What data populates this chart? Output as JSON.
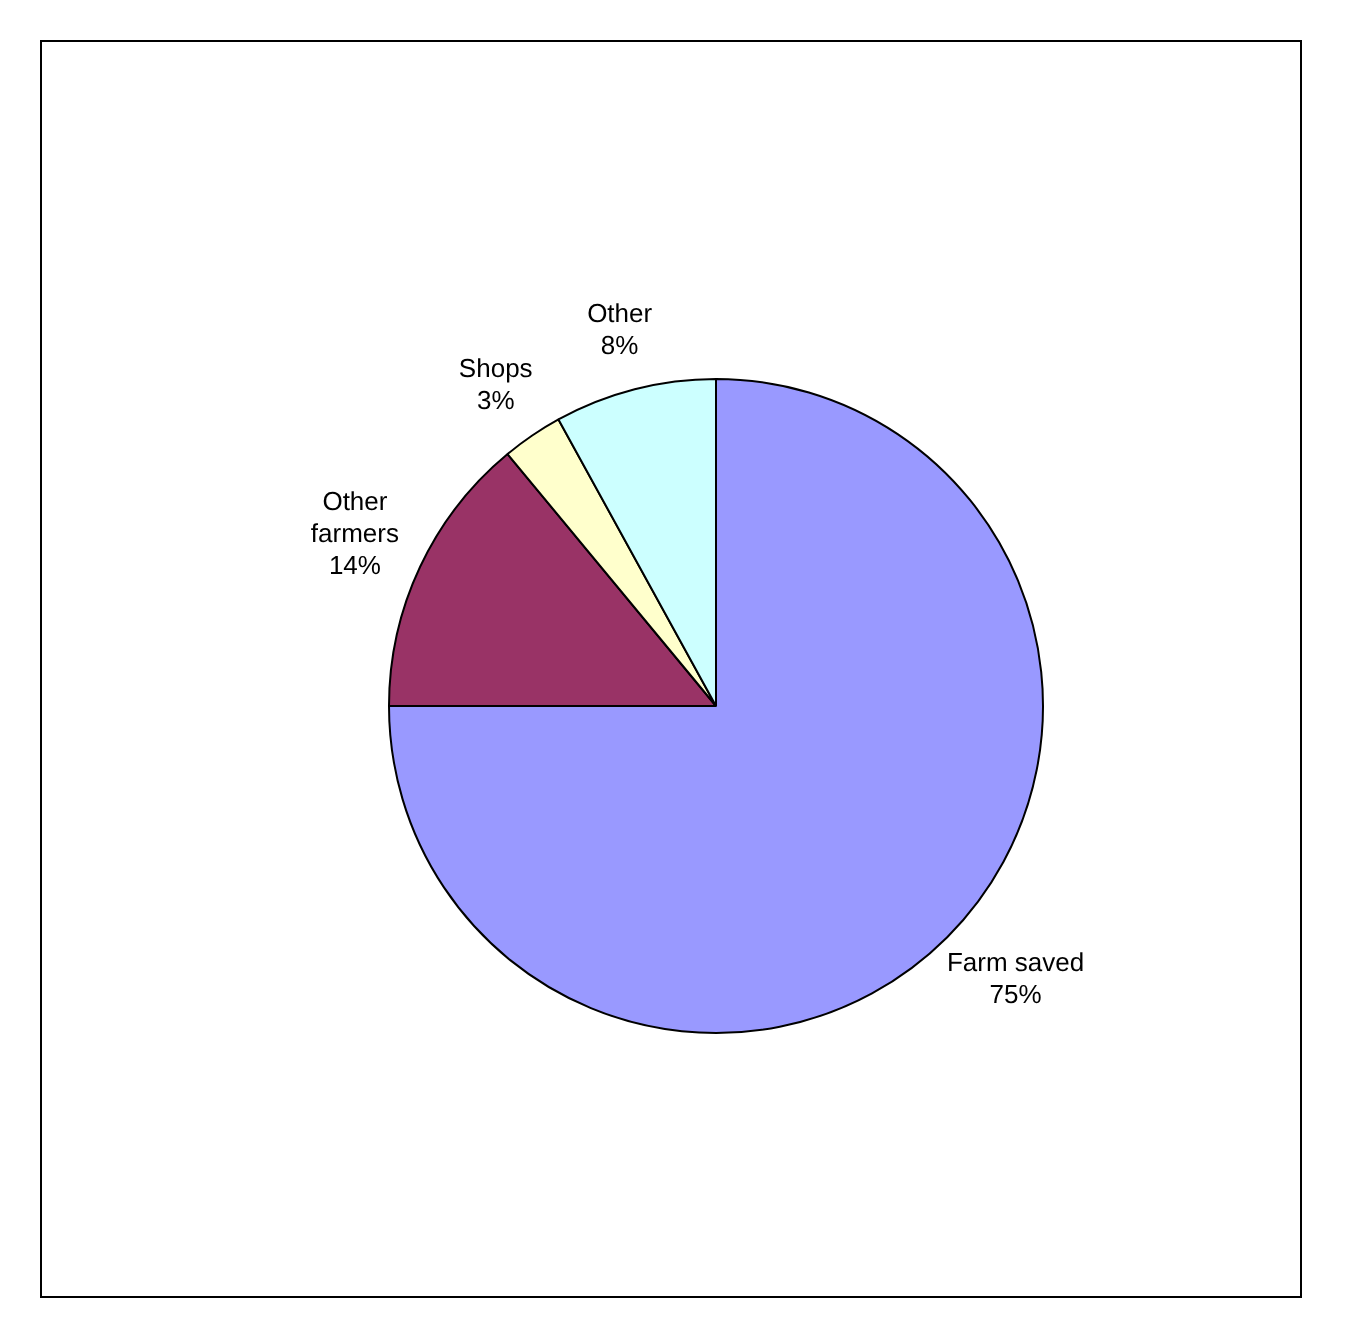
{
  "chart_data": {
    "type": "pie",
    "categories": [
      "Farm saved",
      "Other farmers",
      "Shops",
      "Other"
    ],
    "values": [
      75,
      14,
      3,
      8
    ],
    "colors": [
      "#9999ff",
      "#993366",
      "#ffffcc",
      "#ccffff"
    ],
    "value_labels": [
      "75%",
      "14%",
      "3%",
      "8%"
    ],
    "legend": false
  }
}
